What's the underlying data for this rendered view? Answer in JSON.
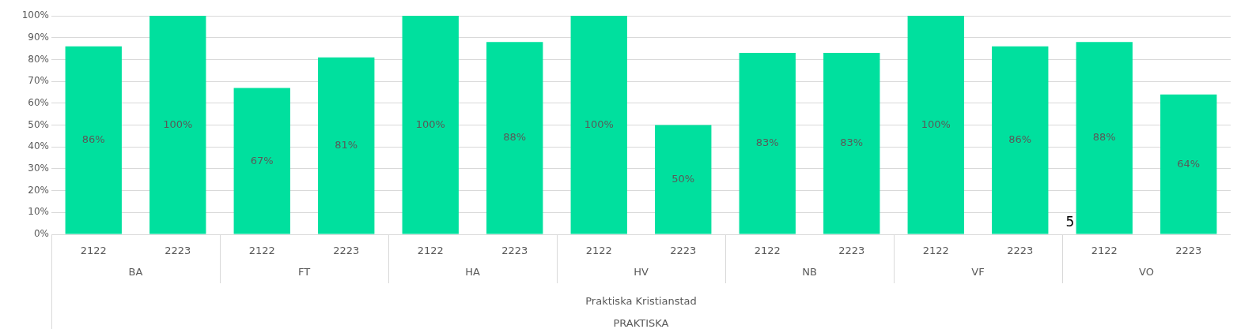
{
  "chart_data": {
    "type": "bar",
    "categories": [
      "2122",
      "2223",
      "2122",
      "2223",
      "2122",
      "2223",
      "2122",
      "2223",
      "2122",
      "2223",
      "2122",
      "2223",
      "2122",
      "2223"
    ],
    "values": [
      86,
      100,
      67,
      81,
      100,
      88,
      100,
      50,
      83,
      83,
      100,
      86,
      88,
      64
    ],
    "value_labels": [
      "86%",
      "100%",
      "67%",
      "81%",
      "100%",
      "88%",
      "100%",
      "50%",
      "83%",
      "83%",
      "100%",
      "86%",
      "88%",
      "64%"
    ],
    "color": "#00e09e",
    "ylim": [
      0,
      100
    ],
    "yticks": [
      {
        "value": 0,
        "label": "0%"
      },
      {
        "value": 10,
        "label": "10%"
      },
      {
        "value": 20,
        "label": "20%"
      },
      {
        "value": 30,
        "label": "30%"
      },
      {
        "value": 40,
        "label": "40%"
      },
      {
        "value": 50,
        "label": "50%"
      },
      {
        "value": 60,
        "label": "60%"
      },
      {
        "value": 70,
        "label": "70%"
      },
      {
        "value": 80,
        "label": "80%"
      },
      {
        "value": 90,
        "label": "90%"
      },
      {
        "value": 100,
        "label": "100%"
      }
    ],
    "grid": "y",
    "legend": false,
    "annotations": [
      "BA",
      "FT",
      "HA",
      "HV",
      "NB",
      "VF",
      "VO",
      "Praktiska Kristianstad",
      "PRAKTISKA",
      "5"
    ]
  }
}
